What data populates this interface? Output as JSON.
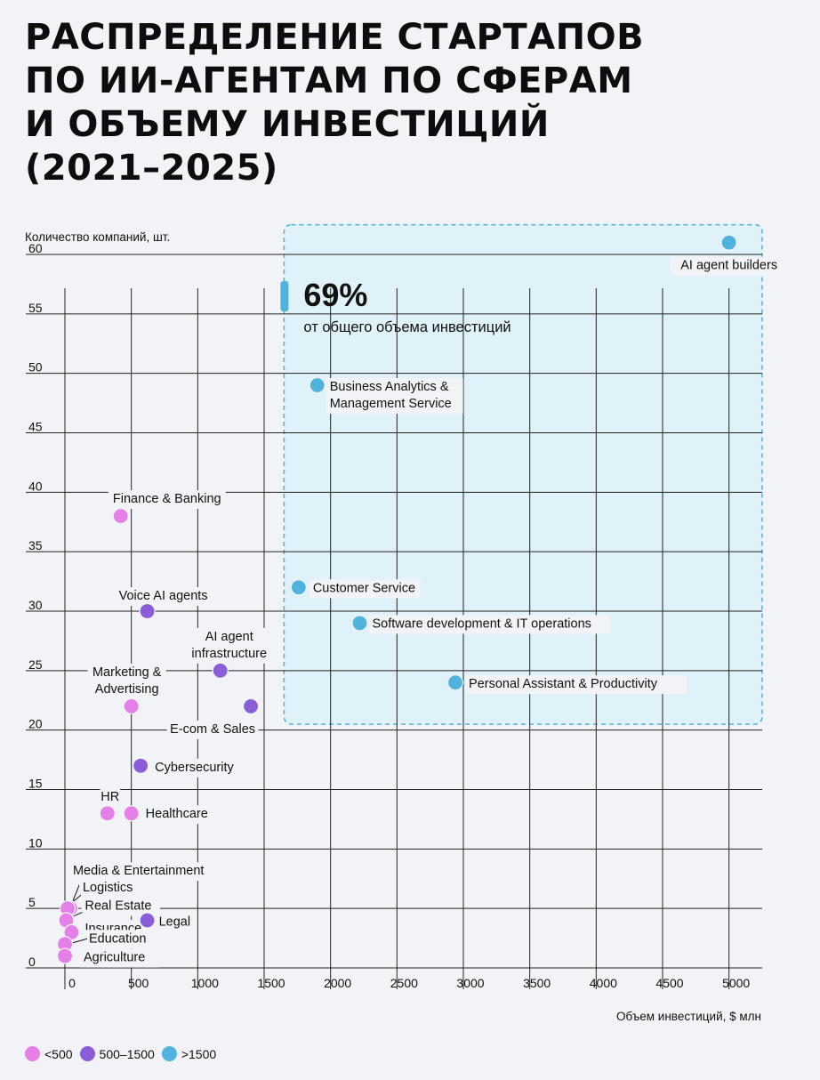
{
  "title_lines": [
    "РАСПРЕДЕЛЕНИЕ СТАРТАПОВ",
    "ПО ИИ-АГЕНТАМ ПО СФЕРАМ",
    "И ОБЪЕМУ ИНВЕСТИЦИЙ",
    "(2021–2025)"
  ],
  "chart_data": {
    "type": "scatter",
    "title": "РАСПРЕДЕЛЕНИЕ СТАРТАПОВ ПО ИИ-АГЕНТАМ ПО СФЕРАМ И ОБЪЕМУ ИНВЕСТИЦИЙ (2021–2025)",
    "xlabel": "Объем инвестиций, $ млн",
    "ylabel": "Количество компаний, шт.",
    "xlim": [
      0,
      5250
    ],
    "ylim": [
      0,
      60
    ],
    "x_ticks": [
      0,
      500,
      1000,
      1500,
      2000,
      2500,
      3000,
      3500,
      4000,
      4500,
      5000
    ],
    "y_ticks": [
      0,
      5,
      10,
      15,
      20,
      25,
      30,
      35,
      40,
      45,
      50,
      55,
      60
    ],
    "grid": true,
    "highlight": {
      "value": "69%",
      "text": "от общего объема инвестиций",
      "region": {
        "x_from": 1650,
        "x_to": 5250,
        "y_from": 20.5,
        "y_to": 62.5
      }
    },
    "groups": [
      {
        "key": "low",
        "label": "<500",
        "color": "#e580e8"
      },
      {
        "key": "mid",
        "label": "500–1500",
        "color": "#8a5ed8"
      },
      {
        "key": "high",
        "label": ">1500",
        "color": "#4fb3de"
      }
    ],
    "points": [
      {
        "name": "AI agent builders",
        "x": 5000,
        "y": 61,
        "group": "high"
      },
      {
        "name": "Business Analytics & Management Service",
        "x": 1900,
        "y": 49,
        "group": "high"
      },
      {
        "name": "Customer Service",
        "x": 1760,
        "y": 32,
        "group": "high"
      },
      {
        "name": "Software development & IT operations",
        "x": 2220,
        "y": 29,
        "group": "high"
      },
      {
        "name": "Personal Assistant & Productivity",
        "x": 2940,
        "y": 24,
        "group": "high"
      },
      {
        "name": "Finance & Banking",
        "x": 420,
        "y": 38,
        "group": "low"
      },
      {
        "name": "Voice AI agents",
        "x": 620,
        "y": 30,
        "group": "mid"
      },
      {
        "name": "AI agent infrastructure",
        "x": 1170,
        "y": 25,
        "group": "mid"
      },
      {
        "name": "E-com & Sales",
        "x": 1400,
        "y": 22,
        "group": "mid"
      },
      {
        "name": "Marketing & Advertising",
        "x": 500,
        "y": 22,
        "group": "low"
      },
      {
        "name": "Cybersecurity",
        "x": 570,
        "y": 17,
        "group": "mid"
      },
      {
        "name": "HR",
        "x": 320,
        "y": 13,
        "group": "low"
      },
      {
        "name": "Healthcare",
        "x": 500,
        "y": 13,
        "group": "low"
      },
      {
        "name": "Media & Entertainment",
        "x": 40,
        "y": 5,
        "group": "low"
      },
      {
        "name": "Logistics",
        "x": 20,
        "y": 5,
        "group": "low"
      },
      {
        "name": "Real Estate",
        "x": 10,
        "y": 4,
        "group": "low"
      },
      {
        "name": "Insurance",
        "x": 50,
        "y": 3,
        "group": "low"
      },
      {
        "name": "Legal",
        "x": 620,
        "y": 4,
        "group": "mid"
      },
      {
        "name": "Education",
        "x": 0,
        "y": 2,
        "group": "low"
      },
      {
        "name": "Agriculture",
        "x": 0,
        "y": 1,
        "group": "low"
      }
    ]
  }
}
